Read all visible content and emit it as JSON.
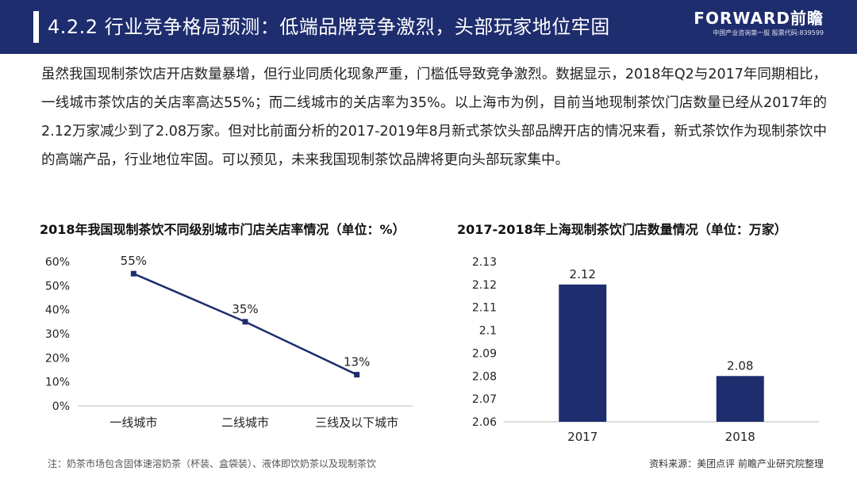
{
  "header": {
    "title": "4.2.2 行业竞争格局预测：低端品牌竞争激烈，头部玩家地位牢固",
    "brand_name": "FORWARD前瞻",
    "brand_sub": "中国产业咨询第一股 股票代码:839599"
  },
  "intro": "虽然我国现制茶饮店开店数量暴增，但行业同质化现象严重，门槛低导致竞争激烈。数据显示，2018年Q2与2017年同期相比，一线城市茶饮店的关店率高达55%；而二线城市的关店率为35%。以上海市为例，目前当地现制茶饮门店数量已经从2017年的2.12万家减少到了2.08万家。但对比前面分析的2017-2019年8月新式茶饮头部品牌开店的情况来看，新式茶饮作为现制茶饮中的高端产品，行业地位牢固。可以预见，未来我国现制茶饮品牌将更向头部玩家集中。",
  "chart_data": [
    {
      "type": "line",
      "title": "2018年我国现制茶饮不同级别城市门店关店率情况（单位：%）",
      "categories": [
        "一线城市",
        "二线城市",
        "三线及以下城市"
      ],
      "values": [
        55,
        35,
        13
      ],
      "data_labels": [
        "55%",
        "35%",
        "13%"
      ],
      "ylim": [
        0,
        60
      ],
      "yticks": [
        "0%",
        "10%",
        "20%",
        "30%",
        "40%",
        "50%",
        "60%"
      ],
      "grid": false,
      "color": "#1e2d6e"
    },
    {
      "type": "bar",
      "title": "2017-2018年上海现制茶饮门店数量情况（单位：万家）",
      "categories": [
        "2017",
        "2018"
      ],
      "values": [
        2.12,
        2.08
      ],
      "data_labels": [
        "2.12",
        "2.08"
      ],
      "ylim": [
        2.06,
        2.13
      ],
      "yticks": [
        "2.06",
        "2.07",
        "2.08",
        "2.09",
        "2.1",
        "2.11",
        "2.12",
        "2.13"
      ],
      "grid": false,
      "color": "#1e2d6e"
    }
  ],
  "footer": {
    "note": "注：奶茶市场包含固体速溶奶茶（杯装、盒袋装）、液体即饮奶茶以及现制茶饮",
    "source": "资料来源：美团点评 前瞻产业研究院整理"
  }
}
